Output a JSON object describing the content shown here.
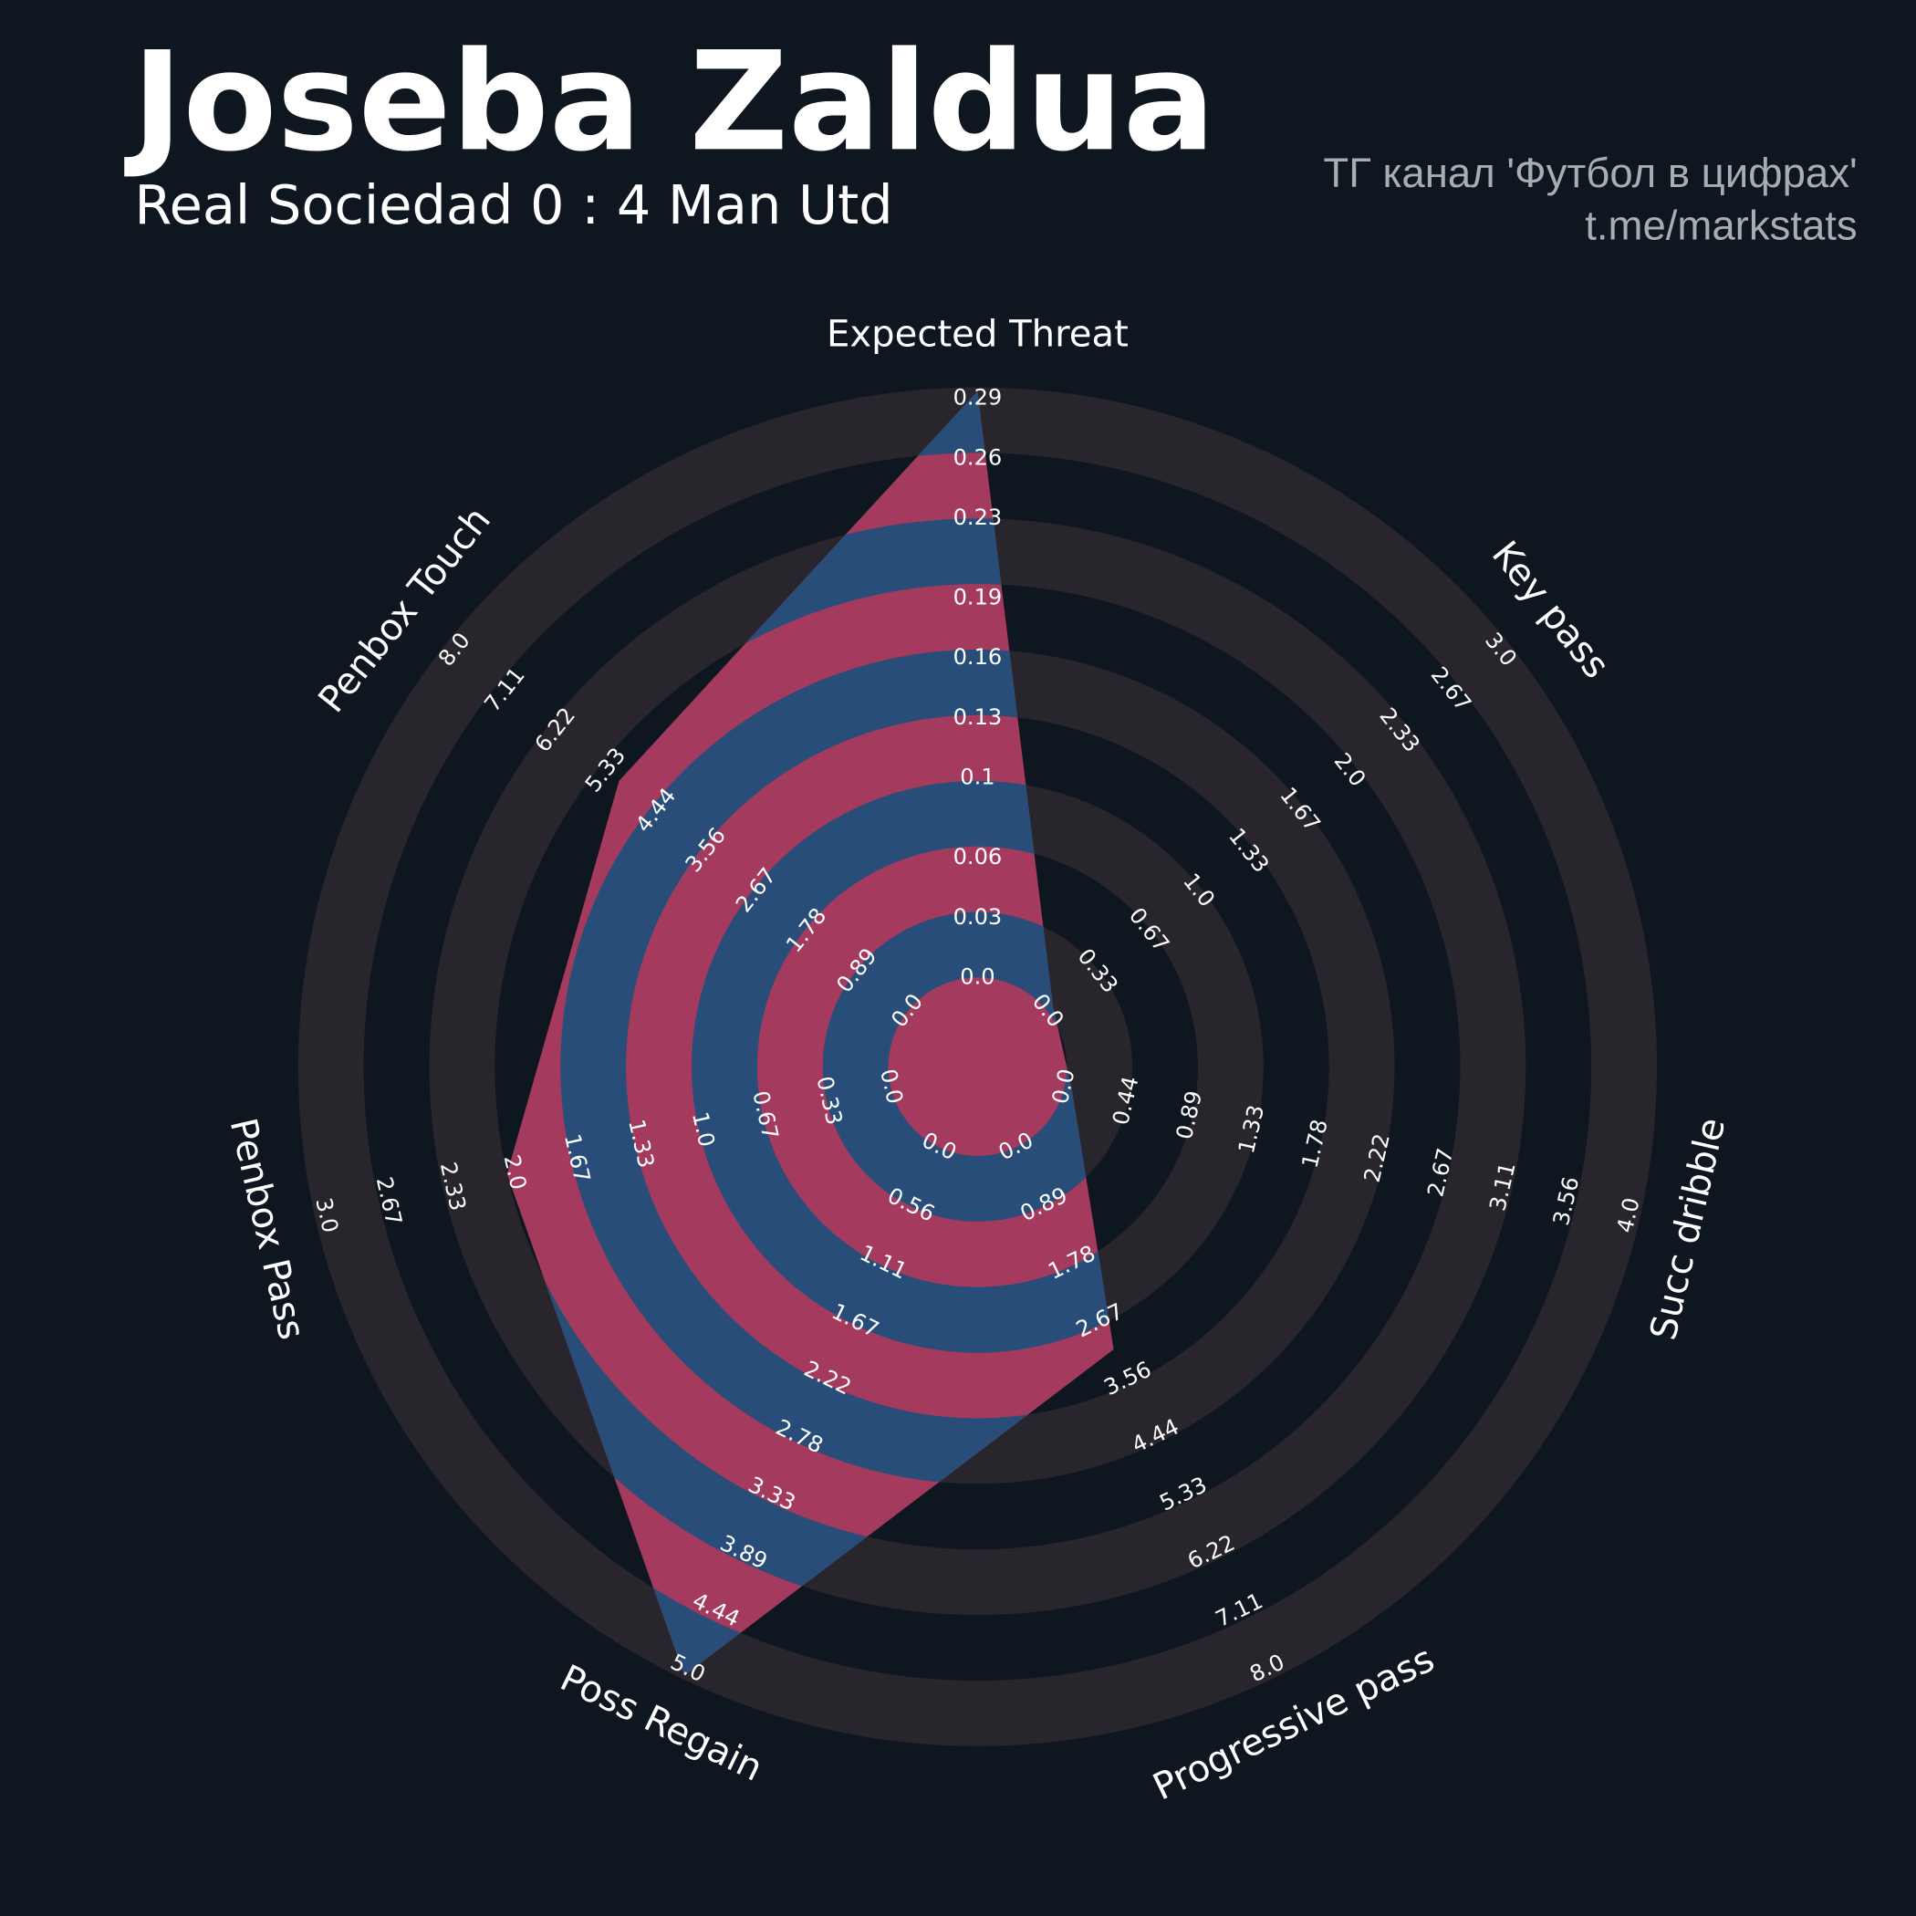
{
  "title": "Joseba Zaldua",
  "subtitle": "Real Sociedad 0 : 4 Man Utd",
  "credits": [
    "ТГ канал 'Футбол в цифрах'",
    "t.me/markstats"
  ],
  "chart_data": {
    "type": "radar",
    "colors": {
      "background": "#0e1720",
      "rings": "#28252c",
      "fill": "#a43a5e",
      "fill_alt": "#274d78"
    },
    "params": [
      {
        "name": "Expected Threat",
        "range": [
          0,
          0.29
        ],
        "value": 0.29,
        "ticks": [
          {
            "value": 0,
            "label": "0.0"
          },
          0.03,
          0.06,
          0.1,
          0.13,
          0.16,
          0.19,
          0.23,
          0.26,
          0.29
        ]
      },
      {
        "name": "Key pass",
        "range": [
          0,
          3
        ],
        "value": 0,
        "ticks": [
          {
            "value": 0,
            "label": "0.0"
          },
          0.33,
          0.67,
          {
            "value": 1,
            "label": "1.0"
          },
          1.33,
          1.67,
          {
            "value": 2,
            "label": "2.0"
          },
          2.33,
          2.67,
          {
            "value": 3,
            "label": "3.0"
          }
        ]
      },
      {
        "name": "Succ dribble",
        "range": [
          0,
          4
        ],
        "value": 0,
        "ticks": [
          {
            "value": 0,
            "label": "0.0"
          },
          0.44,
          0.89,
          1.33,
          1.78,
          2.22,
          2.67,
          3.11,
          3.56,
          {
            "value": 4,
            "label": "4.0"
          }
        ]
      },
      {
        "name": "Progressive pass",
        "range": [
          0,
          8
        ],
        "value": 3,
        "ticks": [
          {
            "value": 0,
            "label": "0.0"
          },
          0.89,
          1.78,
          2.67,
          3.56,
          4.44,
          5.33,
          6.22,
          7.11,
          {
            "value": 8,
            "label": "8.0"
          }
        ]
      },
      {
        "name": "Poss Regain",
        "range": [
          0,
          5
        ],
        "value": 5,
        "ticks": [
          {
            "value": 0,
            "label": "0.0"
          },
          0.56,
          1.11,
          1.67,
          2.22,
          2.78,
          3.33,
          3.89,
          4.44,
          {
            "value": 5,
            "label": "5.0"
          }
        ]
      },
      {
        "name": "Penbox Pass",
        "range": [
          0,
          3
        ],
        "value": 2,
        "ticks": [
          {
            "value": 0,
            "label": "0.0"
          },
          0.33,
          0.67,
          {
            "value": 1,
            "label": "1.0"
          },
          1.33,
          1.67,
          {
            "value": 2,
            "label": "2.0"
          },
          2.33,
          2.67,
          {
            "value": 3,
            "label": "3.0"
          }
        ]
      },
      {
        "name": "Penbox Touch",
        "range": [
          0,
          8
        ],
        "value": 5,
        "ticks": [
          {
            "value": 0,
            "label": "0.0"
          },
          0.89,
          1.78,
          2.67,
          3.56,
          4.44,
          5.33,
          6.22,
          7.11,
          {
            "value": 8,
            "label": "8.0"
          }
        ]
      }
    ]
  }
}
